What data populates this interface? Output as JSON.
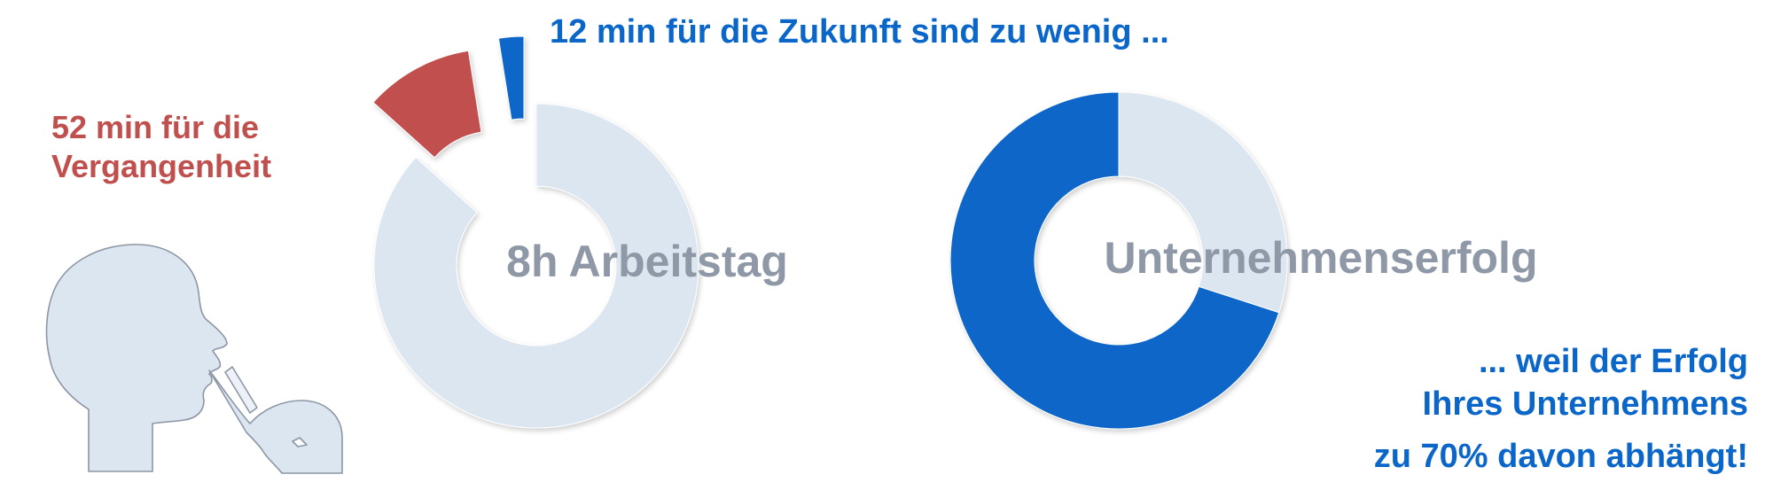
{
  "texts": {
    "past_label_line1": "52 min für die",
    "past_label_line2": "Vergangenheit",
    "future_title": "12 min für die Zukunft sind zu wenig ...",
    "conclusion_line1": "... weil der Erfolg",
    "conclusion_line2": "Ihres Unternehmens",
    "conclusion_line3": "zu 70% davon abhängt!"
  },
  "colors": {
    "past": "#c0504d",
    "future": "#0a66c8",
    "base": "#dce6f1",
    "center_text": "#8e98a6"
  },
  "icons": {
    "person": "thinking-person-icon"
  },
  "chart_data": [
    {
      "type": "pie",
      "center_label": "8h Arbeitstag",
      "unit": "min",
      "slices": [
        {
          "label": "52 min für die Vergangenheit",
          "value": 52,
          "color": "#c0504d",
          "exploded": true
        },
        {
          "label": "12 min für die Zukunft",
          "value": 12,
          "color": "#0a66c8",
          "exploded": true
        },
        {
          "label": "",
          "value": 416,
          "color": "#dce6f1",
          "exploded": false
        }
      ]
    },
    {
      "type": "pie",
      "center_label": "Unternehmenserfolg",
      "unit": "%",
      "slices": [
        {
          "label": "Zukunft",
          "value": 70,
          "color": "#0a66c8"
        },
        {
          "label": "",
          "value": 30,
          "color": "#dce6f1"
        }
      ]
    }
  ]
}
